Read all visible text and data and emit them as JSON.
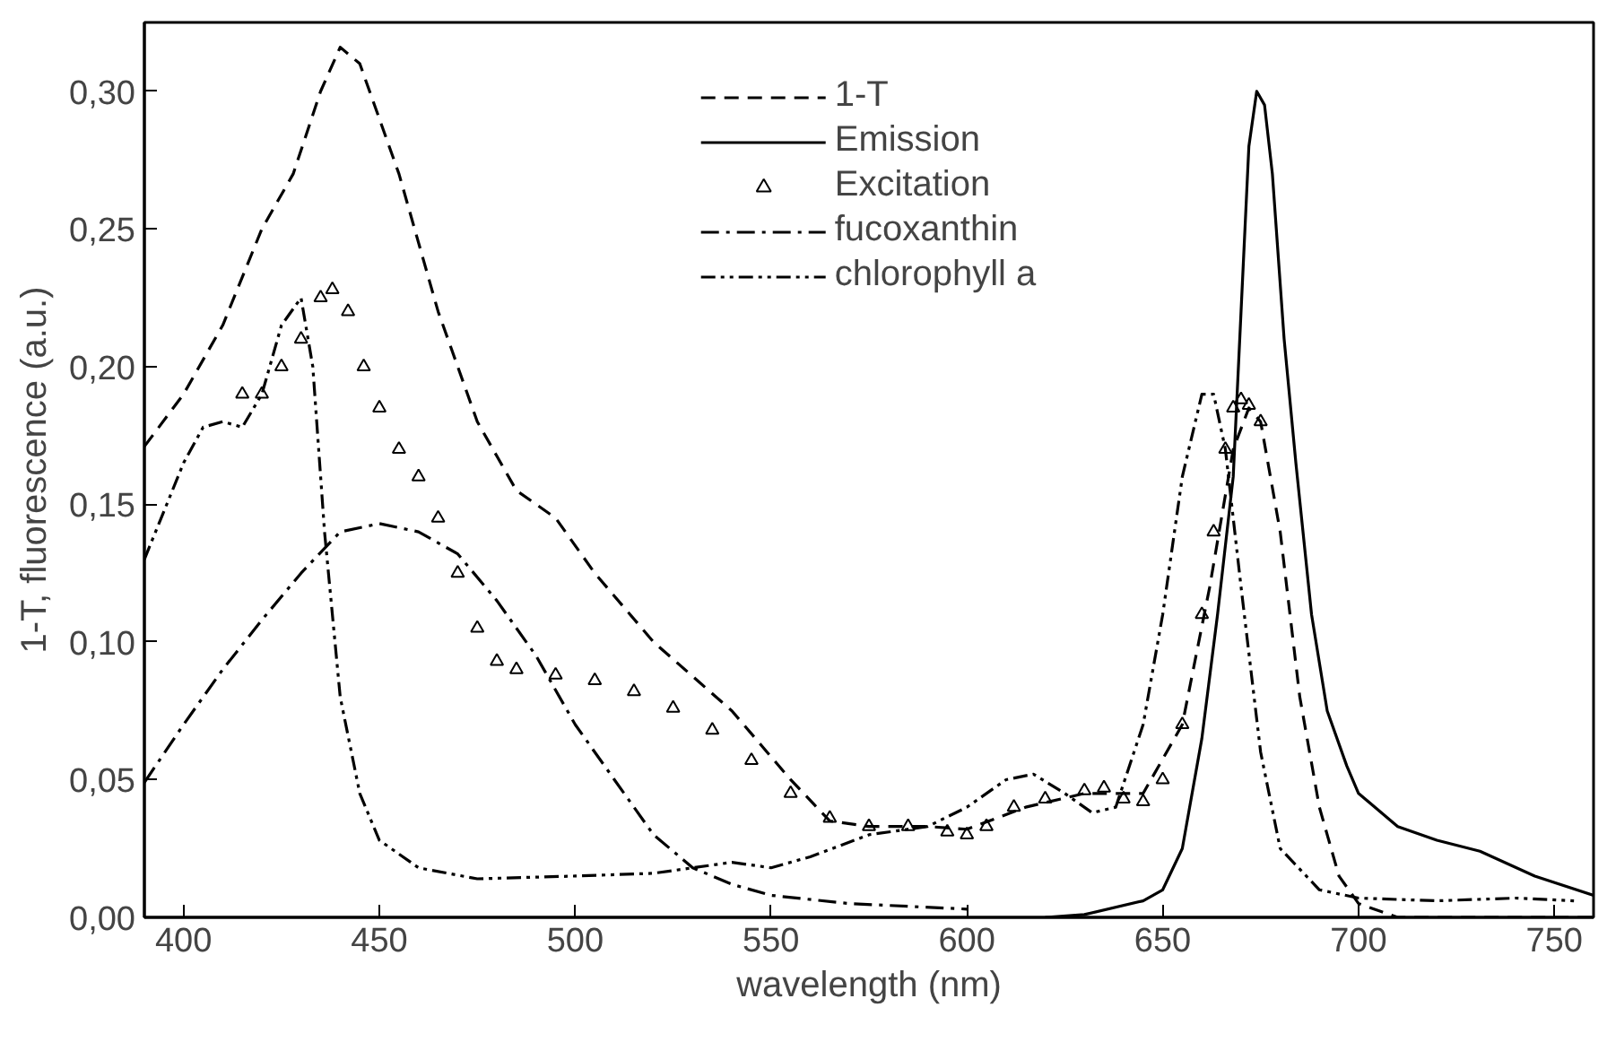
{
  "chart_data": {
    "type": "line",
    "xlabel": "wavelength (nm)",
    "ylabel": "1-T, fluorescence (a.u.)",
    "xlim": [
      390,
      760
    ],
    "ylim": [
      0,
      0.325
    ],
    "xticks": [
      400,
      450,
      500,
      550,
      600,
      650,
      700,
      750
    ],
    "yticks": [
      {
        "value": 0,
        "label": "0,00"
      },
      {
        "value": 0.05,
        "label": "0,05"
      },
      {
        "value": 0.1,
        "label": "0,10"
      },
      {
        "value": 0.15,
        "label": "0,15"
      },
      {
        "value": 0.2,
        "label": "0,20"
      },
      {
        "value": 0.25,
        "label": "0,25"
      },
      {
        "value": 0.3,
        "label": "0,30"
      }
    ],
    "grid": false,
    "legend": "top",
    "marker": "none",
    "series": [
      {
        "name": "1-T",
        "color": "#000000",
        "line_style": "dashed",
        "x": [
          390,
          400,
          410,
          420,
          428,
          435,
          440,
          445,
          455,
          465,
          475,
          485,
          495,
          505,
          520,
          540,
          555,
          565,
          575,
          590,
          600,
          615,
          630,
          645,
          655,
          662,
          668,
          672,
          675,
          680,
          685,
          690,
          695,
          700,
          710,
          760
        ],
        "values": [
          0.171,
          0.19,
          0.215,
          0.25,
          0.27,
          0.3,
          0.316,
          0.31,
          0.27,
          0.22,
          0.18,
          0.155,
          0.145,
          0.125,
          0.1,
          0.075,
          0.05,
          0.035,
          0.033,
          0.033,
          0.032,
          0.04,
          0.045,
          0.045,
          0.07,
          0.12,
          0.17,
          0.185,
          0.18,
          0.14,
          0.08,
          0.04,
          0.015,
          0.005,
          0.0,
          0.0
        ]
      },
      {
        "name": "Emission",
        "color": "#000000",
        "line_style": "solid",
        "x": [
          620,
          630,
          645,
          650,
          655,
          660,
          664,
          668,
          670,
          672,
          674,
          676,
          678,
          681,
          684,
          688,
          692,
          697,
          700,
          710,
          720,
          731,
          745,
          760
        ],
        "values": [
          0.0,
          0.001,
          0.006,
          0.01,
          0.025,
          0.065,
          0.11,
          0.16,
          0.22,
          0.28,
          0.3,
          0.295,
          0.27,
          0.21,
          0.165,
          0.11,
          0.075,
          0.055,
          0.045,
          0.033,
          0.028,
          0.024,
          0.015,
          0.008
        ]
      },
      {
        "name": "Excitation",
        "type": "scatter",
        "marker": "triangle",
        "color": "#000000",
        "x": [
          415,
          420,
          425,
          430,
          435,
          438,
          442,
          446,
          450,
          455,
          460,
          465,
          470,
          475,
          480,
          485,
          495,
          505,
          515,
          525,
          535,
          545,
          555,
          565,
          575,
          585,
          595,
          600,
          605,
          612,
          620,
          630,
          635,
          640,
          645,
          650,
          655,
          660,
          663,
          666,
          668,
          670,
          672,
          675
        ],
        "values": [
          0.19,
          0.19,
          0.2,
          0.21,
          0.225,
          0.228,
          0.22,
          0.2,
          0.185,
          0.17,
          0.16,
          0.145,
          0.125,
          0.105,
          0.093,
          0.09,
          0.088,
          0.086,
          0.082,
          0.076,
          0.068,
          0.057,
          0.045,
          0.036,
          0.033,
          0.033,
          0.031,
          0.03,
          0.033,
          0.04,
          0.043,
          0.046,
          0.047,
          0.043,
          0.042,
          0.05,
          0.07,
          0.11,
          0.14,
          0.17,
          0.185,
          0.188,
          0.186,
          0.18
        ]
      },
      {
        "name": "fucoxanthin",
        "color": "#000000",
        "line_style": "dashdot",
        "x": [
          390,
          400,
          410,
          420,
          430,
          440,
          450,
          460,
          470,
          480,
          490,
          500,
          510,
          520,
          530,
          540,
          550,
          570,
          600
        ],
        "values": [
          0.049,
          0.07,
          0.09,
          0.108,
          0.125,
          0.14,
          0.143,
          0.14,
          0.132,
          0.115,
          0.095,
          0.07,
          0.05,
          0.03,
          0.018,
          0.012,
          0.008,
          0.005,
          0.003
        ]
      },
      {
        "name": "chlorophyll a",
        "color": "#000000",
        "line_style": "dashdotdot",
        "x": [
          390,
          400,
          405,
          410,
          415,
          420,
          425,
          430,
          433,
          436,
          440,
          445,
          450,
          460,
          475,
          500,
          520,
          530,
          540,
          550,
          560,
          575,
          590,
          600,
          610,
          617,
          625,
          632,
          638,
          645,
          650,
          655,
          660,
          663,
          666,
          670,
          675,
          680,
          690,
          700,
          720,
          740,
          755
        ],
        "values": [
          0.13,
          0.165,
          0.178,
          0.18,
          0.178,
          0.19,
          0.215,
          0.225,
          0.2,
          0.14,
          0.08,
          0.045,
          0.028,
          0.018,
          0.014,
          0.015,
          0.016,
          0.018,
          0.02,
          0.018,
          0.022,
          0.03,
          0.033,
          0.04,
          0.05,
          0.052,
          0.045,
          0.038,
          0.04,
          0.07,
          0.11,
          0.16,
          0.19,
          0.19,
          0.17,
          0.12,
          0.06,
          0.025,
          0.01,
          0.007,
          0.006,
          0.007,
          0.006
        ]
      }
    ]
  }
}
